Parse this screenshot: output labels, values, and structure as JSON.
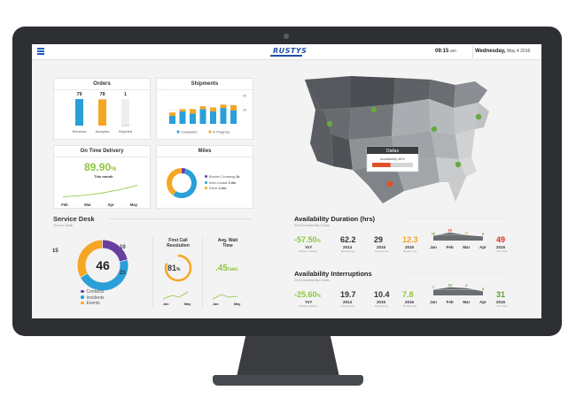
{
  "header": {
    "logo": "RUSTYS",
    "time": "09:15",
    "ampm": "am",
    "day": "Wednesday,",
    "date": "May 4 2016"
  },
  "orders": {
    "title": "Orders",
    "bars": [
      {
        "label": "Received",
        "value": "79",
        "color": "#2a9fd8"
      },
      {
        "label": "Accepted",
        "value": "78",
        "color": "#f5a623"
      },
      {
        "label": "Rejected",
        "value": "1",
        "color": "#c9c9c9"
      }
    ],
    "values": [
      79,
      78,
      1
    ],
    "max": 79
  },
  "shipments": {
    "title": "Shipments",
    "ticks": [
      "50",
      "25"
    ],
    "completed": [
      14,
      22,
      18,
      26,
      22,
      28,
      24
    ],
    "in_progress": [
      6,
      4,
      8,
      5,
      7,
      6,
      9
    ],
    "max": 50,
    "legend": [
      "Completed",
      "In Progress"
    ],
    "colors": {
      "completed": "#2a9fd8",
      "in_progress": "#f5a623"
    }
  },
  "ontime": {
    "title": "On Time Delivery",
    "value": "89.90",
    "unit": "%",
    "sublabel": "This month",
    "months": [
      "Feb",
      "Mar",
      "Apr",
      "May"
    ],
    "trend": [
      40,
      45,
      55,
      70,
      90
    ]
  },
  "miles": {
    "title": "Miles",
    "items": [
      {
        "label": "Border Crossing",
        "value": "1k",
        "color": "#6b3fa0"
      },
      {
        "label": "Inter-modal",
        "value": "3.9m",
        "color": "#2a9fd8"
      },
      {
        "label": "Drive",
        "value": "2.8m",
        "color": "#f5a623"
      }
    ],
    "shares": [
      0.05,
      0.55,
      0.4
    ]
  },
  "map": {
    "tooltip_title": "Dallas",
    "tooltip_label": "Availability",
    "tooltip_value": "45%",
    "availability": 0.45
  },
  "service_desk": {
    "title": "Service Desk",
    "subtitle": "Year to Date",
    "total": "46",
    "segments": [
      {
        "label": "Contacts",
        "value": "10",
        "color": "#6b3fa0",
        "n": 10
      },
      {
        "label": "Incidents",
        "value": "21",
        "color": "#2a9fd8",
        "n": 21
      },
      {
        "label": "Events",
        "value": "15",
        "color": "#f5a623",
        "n": 15
      }
    ],
    "fcr": {
      "title1": "First Call",
      "title2": "Resolution",
      "value": "81",
      "unit": "%",
      "fraction": 0.81
    },
    "wait": {
      "title1": "Avg. Wait",
      "title2": "Time",
      "value": ".45",
      "unit": "/sec"
    },
    "spark_labels": [
      "Jan",
      "May"
    ]
  },
  "availability_duration": {
    "title": "Availability Duration (hrs)",
    "subtitle": "2016 Availability Goals",
    "yoy": {
      "value": "-57.50",
      "unit": "%",
      "label": "YoY",
      "sub": "Monthly variance"
    },
    "y2014": {
      "value": "62.2",
      "label": "2014",
      "sub": "Monthly Avg"
    },
    "y2015": {
      "value": "29",
      "label": "2015",
      "sub": "Monthly Avg"
    },
    "y2016": {
      "value": "12.3",
      "label": "2016",
      "sub": "Monthly Avg"
    },
    "months": [
      "Jan",
      "Feb",
      "Mar",
      "Apr"
    ],
    "month_values": [
      "10",
      "18",
      "12",
      "9"
    ],
    "month_colors": [
      "#5a9e2f",
      "#d9302c",
      "#f5a623",
      "#5a9e2f"
    ],
    "ytd": {
      "value": "49",
      "label": "2016",
      "sub": "YTD Total",
      "color": "#d9302c"
    }
  },
  "availability_interruptions": {
    "title": "Availability Interruptions",
    "subtitle": "2016 Availability Goals",
    "yoy": {
      "value": "-25.60",
      "unit": "%",
      "label": "YoY",
      "sub": "Monthly variance"
    },
    "y2014": {
      "value": "19.7",
      "label": "2014",
      "sub": "Monthly Avg"
    },
    "y2015": {
      "value": "10.4",
      "label": "2015",
      "sub": "Monthly Avg"
    },
    "y2016": {
      "value": "7.8",
      "label": "2016",
      "sub": "Monthly Avg"
    },
    "months": [
      "Jan",
      "Feb",
      "Mar",
      "Apr"
    ],
    "month_values": [
      "7",
      "10",
      "9",
      "5"
    ],
    "month_colors": [
      "#5a9e2f",
      "#5a9e2f",
      "#5a9e2f",
      "#5a9e2f"
    ],
    "ytd": {
      "value": "31",
      "label": "2016",
      "sub": "YTD Total",
      "color": "#5a9e2f"
    }
  },
  "colors": {
    "accent_green": "#8cc63f",
    "brand_blue": "#1f4fa6"
  }
}
